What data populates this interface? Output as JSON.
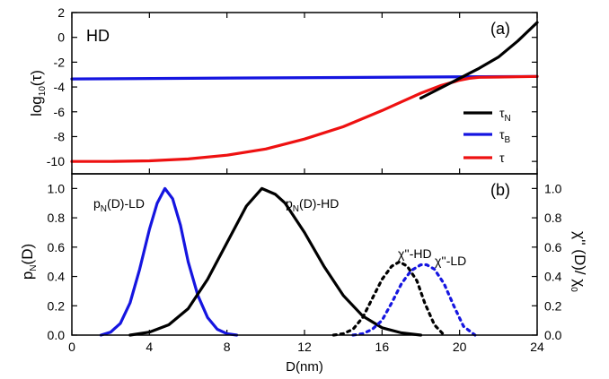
{
  "chart_data": [
    {
      "type": "line",
      "panel": "(a)",
      "tag": "HD",
      "ylabel": "log10(τ)",
      "xlim": [
        0,
        24
      ],
      "ylim": [
        -11,
        2
      ],
      "yticks": [
        2,
        0,
        -2,
        -4,
        -6,
        -8,
        -10
      ],
      "series": [
        {
          "name": "τN",
          "color": "#000000",
          "x": [
            18,
            19,
            20,
            20.5,
            21,
            22,
            23,
            24
          ],
          "y": [
            -4.9,
            -4.1,
            -3.3,
            -2.9,
            -2.5,
            -1.6,
            -0.3,
            1.2
          ]
        },
        {
          "name": "τB",
          "color": "#1515e0",
          "x": [
            0,
            24
          ],
          "y": [
            -3.35,
            -3.15
          ]
        },
        {
          "name": "τ",
          "color": "#ee1111",
          "x": [
            0,
            2,
            4,
            6,
            8,
            10,
            12,
            14,
            16,
            17,
            18,
            19,
            20,
            20.5,
            21,
            22,
            24
          ],
          "y": [
            -10.0,
            -10.0,
            -9.95,
            -9.8,
            -9.5,
            -9.0,
            -8.2,
            -7.2,
            -5.9,
            -5.2,
            -4.5,
            -3.9,
            -3.45,
            -3.3,
            -3.22,
            -3.2,
            -3.15
          ]
        }
      ],
      "legend": [
        "τN",
        "τB",
        "τ"
      ],
      "legend_position": "right"
    },
    {
      "type": "line",
      "panel": "(b)",
      "xlabel": "D(nm)",
      "ylabel_left": "pN(D)",
      "ylabel_right": "χ'' (D)/ χ0",
      "xlim": [
        0,
        24
      ],
      "ylim": [
        0,
        1.1
      ],
      "xticks": [
        0,
        4,
        8,
        12,
        16,
        20,
        24
      ],
      "yticks": [
        0.0,
        0.2,
        0.4,
        0.6,
        0.8,
        1.0
      ],
      "series": [
        {
          "name": "pN(D)-LD",
          "color": "#1515e0",
          "style": "solid",
          "x": [
            1.5,
            2,
            2.5,
            3,
            3.5,
            4,
            4.4,
            4.8,
            5.2,
            5.6,
            6,
            6.5,
            7,
            7.5,
            8,
            8.5
          ],
          "y": [
            0.0,
            0.02,
            0.08,
            0.22,
            0.45,
            0.72,
            0.9,
            1.0,
            0.93,
            0.75,
            0.5,
            0.27,
            0.12,
            0.04,
            0.01,
            0.0
          ]
        },
        {
          "name": "pN(D)-HD",
          "color": "#000000",
          "style": "solid",
          "x": [
            3,
            4,
            5,
            6,
            7,
            8,
            9,
            9.8,
            10.5,
            11,
            12,
            13,
            14,
            15,
            16,
            17,
            18
          ],
          "y": [
            0.0,
            0.02,
            0.07,
            0.18,
            0.38,
            0.63,
            0.88,
            1.0,
            0.96,
            0.9,
            0.7,
            0.47,
            0.27,
            0.13,
            0.05,
            0.015,
            0.0
          ]
        },
        {
          "name": "χ''-HD",
          "color": "#000000",
          "style": "dotted",
          "x": [
            13.5,
            14,
            14.5,
            15,
            15.5,
            16,
            16.5,
            16.9,
            17.3,
            17.8,
            18.2,
            18.7,
            19.2
          ],
          "y": [
            0.0,
            0.01,
            0.04,
            0.12,
            0.25,
            0.38,
            0.47,
            0.5,
            0.47,
            0.37,
            0.22,
            0.07,
            0.0
          ]
        },
        {
          "name": "χ''-LD",
          "color": "#1515e0",
          "style": "dotted",
          "x": [
            14.5,
            15,
            15.5,
            16,
            16.5,
            17,
            17.5,
            18,
            18.3,
            18.7,
            19.2,
            19.7,
            20.2,
            20.8
          ],
          "y": [
            0.0,
            0.01,
            0.04,
            0.1,
            0.22,
            0.35,
            0.44,
            0.48,
            0.48,
            0.45,
            0.35,
            0.2,
            0.06,
            0.0
          ]
        }
      ]
    }
  ]
}
